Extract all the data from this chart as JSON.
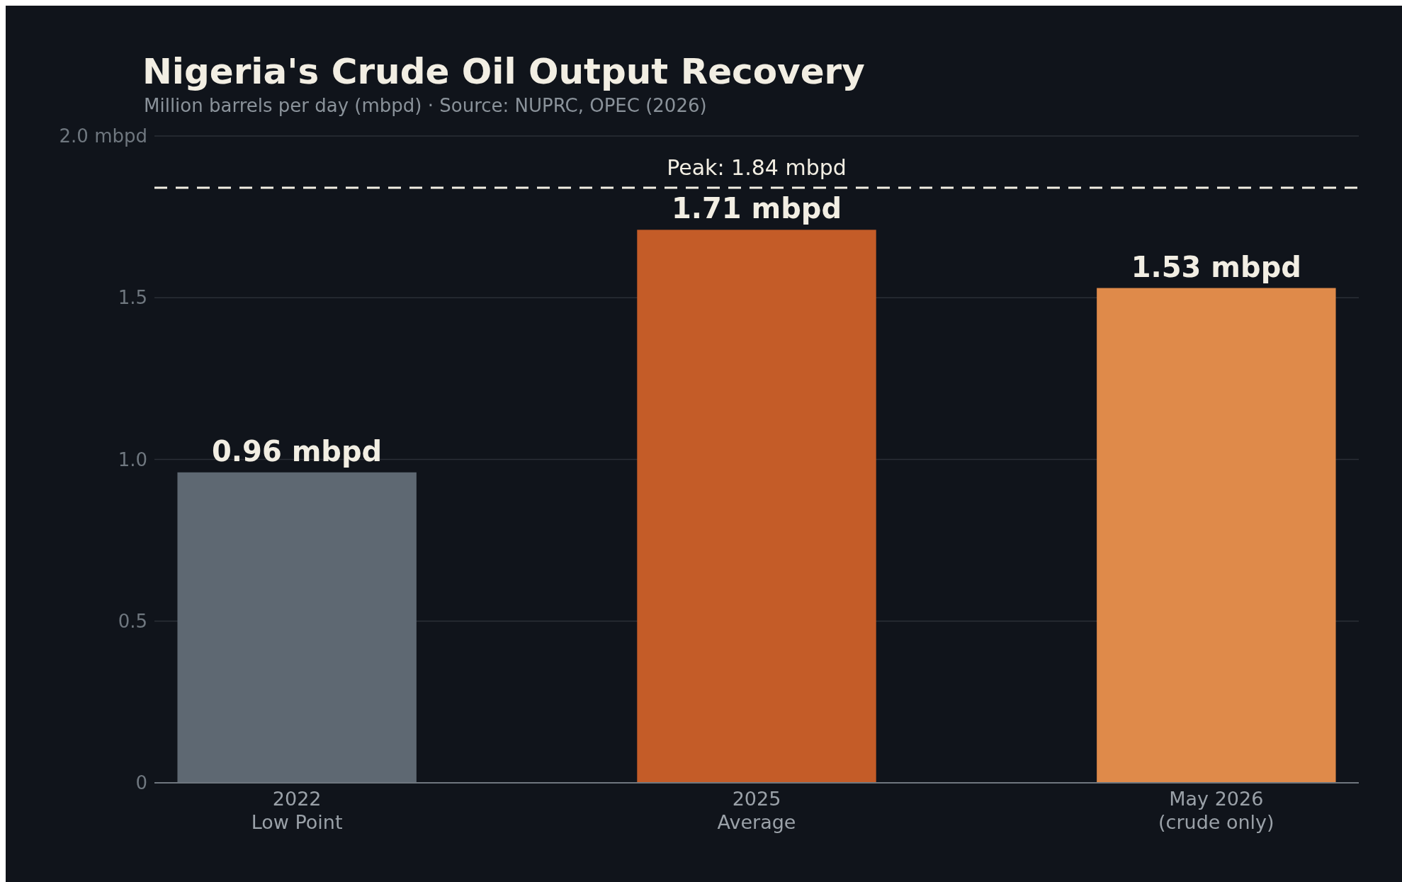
{
  "chart_data": {
    "type": "bar",
    "title": "Nigeria's Crude Oil Output Recovery",
    "subtitle": "Million barrels per day (mbpd) · Source: NUPRC, OPEC (2026)",
    "categories": [
      "2022\nLow Point",
      "2025\nAverage",
      "May 2026\n(crude only)"
    ],
    "values": [
      0.96,
      1.71,
      1.53
    ],
    "colors": [
      "#5e6872",
      "#c45c28",
      "#df8a4a"
    ],
    "value_labels": [
      "0.96 mbpd",
      "1.71 mbpd",
      "1.53 mbpd"
    ],
    "ylim": [
      0,
      2
    ],
    "yticks": [
      0,
      0.5,
      {
        "value": 1,
        "label": "1.0"
      },
      1.5,
      {
        "value": 2,
        "label": "2.0 mbpd"
      }
    ],
    "grid": "y",
    "ref_lines": [
      {
        "axis": "y",
        "value": 1.84,
        "label": "Peak: 1.84 mbpd",
        "color": "#f2eee3",
        "line_style": "dashed"
      }
    ]
  }
}
